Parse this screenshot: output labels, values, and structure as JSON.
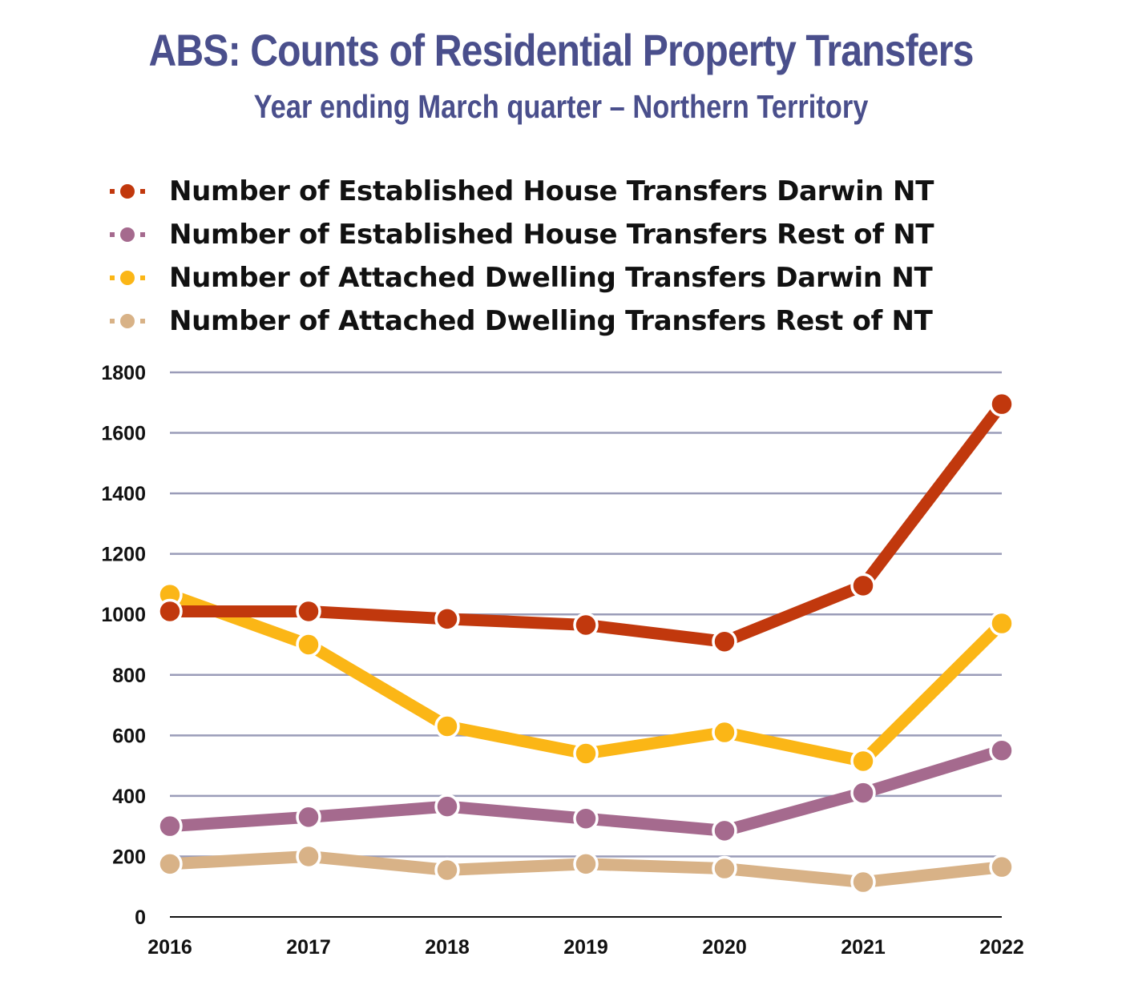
{
  "chart_data": {
    "type": "line",
    "title": "ABS: Counts of Residential Property Transfers",
    "subtitle": "Year ending March quarter – Northern Territory",
    "categories": [
      "2016",
      "2017",
      "2018",
      "2019",
      "2020",
      "2021",
      "2022"
    ],
    "y_ticks": [
      "0",
      "200",
      "400",
      "600",
      "800",
      "1000",
      "1200",
      "1400",
      "1600",
      "1800"
    ],
    "ylim": [
      0,
      1800
    ],
    "grid": true,
    "legend_position": "top-left",
    "series": [
      {
        "name": "Number of Established House Transfers Darwin NT",
        "color": "#c1380d",
        "values": [
          1010,
          1010,
          985,
          965,
          910,
          1095,
          1695
        ]
      },
      {
        "name": "Number of Established House Transfers Rest of NT",
        "color": "#a56a8e",
        "values": [
          300,
          330,
          365,
          325,
          285,
          410,
          550
        ]
      },
      {
        "name": "Number of Attached Dwelling Transfers Darwin NT",
        "color": "#fbb616",
        "values": [
          1065,
          900,
          630,
          540,
          610,
          515,
          970
        ]
      },
      {
        "name": "Number of Attached Dwelling Transfers Rest of NT",
        "color": "#d8b287",
        "values": [
          175,
          200,
          155,
          175,
          160,
          115,
          165
        ]
      }
    ]
  }
}
